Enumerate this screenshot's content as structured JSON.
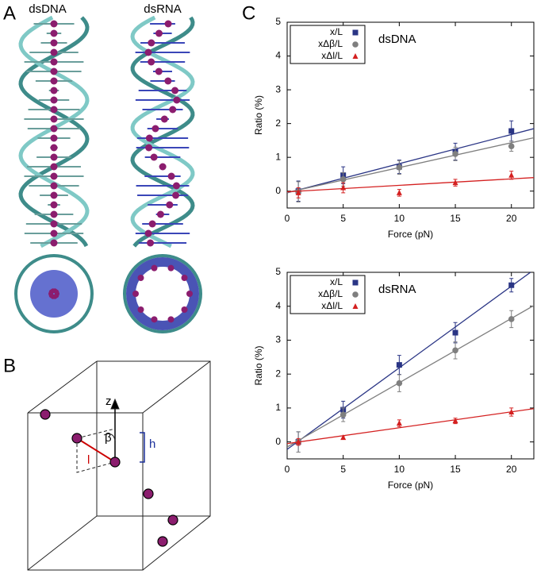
{
  "panels": {
    "a": {
      "label": "A",
      "titles": [
        "dsDNA",
        "dsRNA"
      ]
    },
    "b": {
      "label": "B",
      "axis": "z",
      "angle": "β",
      "height": "h",
      "length": "l"
    },
    "c": {
      "label": "C"
    }
  },
  "chart_data": [
    {
      "type": "scatter",
      "title": "dsDNA",
      "x_label": "Force (pN)",
      "y_label": "Ratio (%)",
      "x": [
        1,
        5,
        10,
        15,
        20
      ],
      "xlim": [
        0,
        22
      ],
      "ylim": [
        -0.5,
        5
      ],
      "xticks": [
        0,
        5,
        10,
        15,
        20
      ],
      "yticks": [
        0,
        1,
        2,
        3,
        4,
        5
      ],
      "legend": "upper-left",
      "series": [
        {
          "name": "x/L",
          "color": "#2a3585",
          "marker": "square",
          "values": [
            0,
            0.47,
            0.72,
            1.17,
            1.78
          ],
          "errors": [
            0.3,
            0.25,
            0.2,
            0.25,
            0.3
          ],
          "fit": {
            "x": [
              0,
              22
            ],
            "y": [
              -0.05,
              1.85
            ]
          }
        },
        {
          "name": "xΔβ/L",
          "color": "#7f7f7f",
          "marker": "circle",
          "values": [
            -0.02,
            0.35,
            0.7,
            1.1,
            1.33
          ],
          "errors": [
            0.3,
            0.2,
            0.2,
            0.2,
            0.15
          ],
          "fit": {
            "x": [
              0,
              22
            ],
            "y": [
              -0.04,
              1.58
            ]
          }
        },
        {
          "name": "xΔl/L",
          "color": "#d42020",
          "marker": "triangle",
          "values": [
            -0.05,
            0.1,
            -0.05,
            0.25,
            0.47
          ],
          "errors": [
            0.15,
            0.15,
            0.1,
            0.1,
            0.12
          ],
          "fit": {
            "x": [
              0,
              22
            ],
            "y": [
              -0.02,
              0.4
            ]
          }
        }
      ]
    },
    {
      "type": "scatter",
      "title": "dsRNA",
      "x_label": "Force (pN)",
      "y_label": "Ratio (%)",
      "x": [
        1,
        5,
        10,
        15,
        20
      ],
      "xlim": [
        0,
        22
      ],
      "ylim": [
        -0.5,
        5
      ],
      "xticks": [
        0,
        5,
        10,
        15,
        20
      ],
      "yticks": [
        0,
        1,
        2,
        3,
        4,
        5
      ],
      "legend": "upper-left",
      "series": [
        {
          "name": "x/L",
          "color": "#2a3585",
          "marker": "square",
          "values": [
            0,
            0.95,
            2.27,
            3.22,
            4.62
          ],
          "errors": [
            0.3,
            0.25,
            0.28,
            0.3,
            0.2
          ],
          "fit": {
            "x": [
              0,
              21.7
            ],
            "y": [
              -0.22,
              5
            ]
          }
        },
        {
          "name": "xΔβ/L",
          "color": "#7f7f7f",
          "marker": "circle",
          "values": [
            0,
            0.8,
            1.73,
            2.7,
            3.62
          ],
          "errors": [
            0.3,
            0.2,
            0.25,
            0.25,
            0.25
          ],
          "fit": {
            "x": [
              0,
              22
            ],
            "y": [
              -0.15,
              4.02
            ]
          }
        },
        {
          "name": "xΔl/L",
          "color": "#d42020",
          "marker": "triangle",
          "values": [
            0,
            0.13,
            0.55,
            0.62,
            0.88
          ],
          "errors": [
            0.1,
            0.05,
            0.1,
            0.08,
            0.12
          ],
          "fit": {
            "x": [
              0,
              22
            ],
            "y": [
              -0.05,
              0.98
            ]
          }
        }
      ]
    }
  ]
}
